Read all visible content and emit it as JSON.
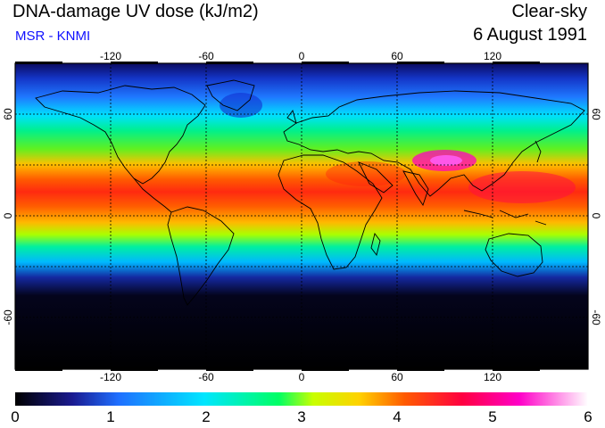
{
  "header": {
    "title": "DNA-damage UV dose (kJ/m2)",
    "source": "MSR - KNMI",
    "condition": "Clear-sky",
    "date": "6 August 1991"
  },
  "map": {
    "projection": "plate-carree",
    "lon_ticks": [
      "-120",
      "-60",
      "0",
      "60",
      "120"
    ],
    "lat_ticks": [
      "60",
      "0",
      "-60"
    ],
    "grid": "dashed, every 30 degrees",
    "colors": {
      "frame": "#000000",
      "gridlines": "#000000",
      "coastlines": "#000000"
    }
  },
  "colorbar": {
    "labels": [
      "0",
      "1",
      "2",
      "3",
      "4",
      "5",
      "6"
    ],
    "min": 0,
    "max": 6,
    "stops": [
      "#000000",
      "#1a1a90",
      "#1f6fff",
      "#00e6ff",
      "#00ff64",
      "#c8ff00",
      "#ffd200",
      "#ff5a00",
      "#ff0040",
      "#ff00c8",
      "#ffffff"
    ]
  }
}
